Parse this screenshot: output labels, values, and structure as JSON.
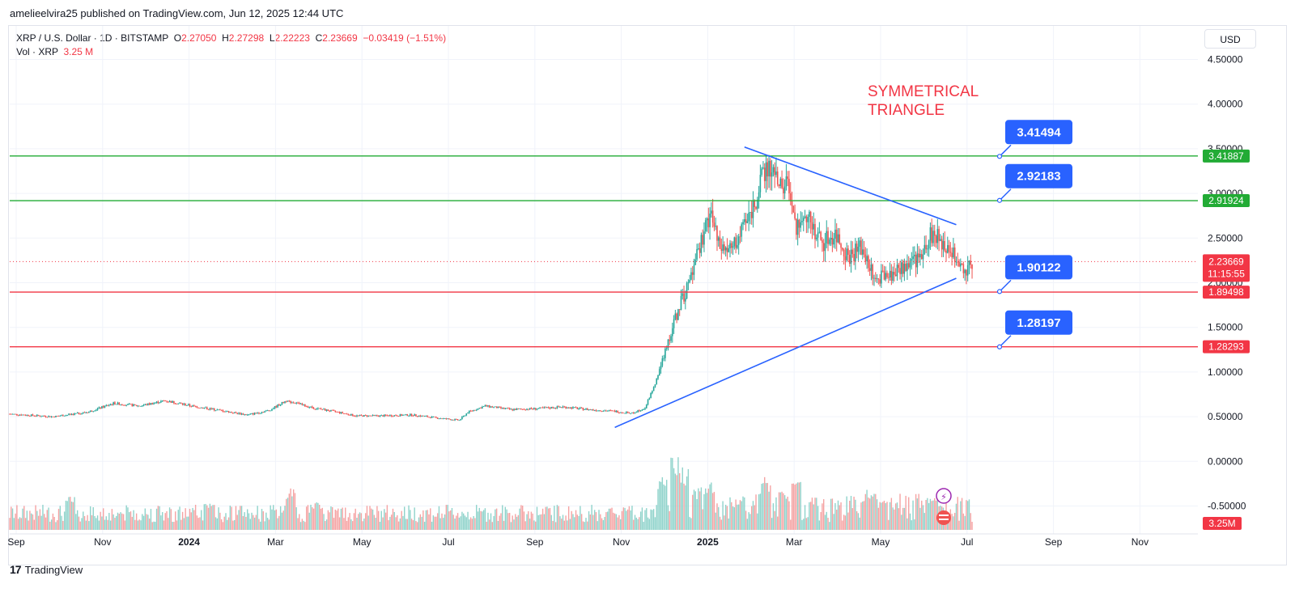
{
  "header": {
    "published": "amelieelvira25 published on TradingView.com, Jun 12, 2025 12:44 UTC"
  },
  "legend": {
    "symbol": "XRP / U.S. Dollar · 1D · BITSTAMP",
    "o_label": "O",
    "o_value": "2.27050",
    "h_label": "H",
    "h_value": "2.27298",
    "l_label": "L",
    "l_value": "2.22223",
    "c_label": "C",
    "c_value": "2.23669",
    "change": "−0.03419 (−1.51%)",
    "vol_label": "Vol · XRP",
    "vol_value": "3.25 M"
  },
  "currency_button": "USD",
  "annotation": [
    "SYMMETRICAL",
    "TRIANGLE"
  ],
  "colors": {
    "up": "#26a69a",
    "down": "#ef5350",
    "support": "#f23645",
    "resistance": "#22ab35",
    "trendline": "#2962ff",
    "callout": "#2962ff"
  },
  "chart_data": {
    "type": "candlestick",
    "title": "XRP / U.S. Dollar · 1D · BITSTAMP",
    "ylim": [
      -0.75,
      4.75
    ],
    "y_ticks": [
      "4.50000",
      "4.00000",
      "3.50000",
      "3.00000",
      "2.50000",
      "2.00000",
      "1.50000",
      "1.00000",
      "0.50000",
      "0.00000",
      "-0.50000"
    ],
    "x_months": [
      {
        "label": "Sep",
        "t": 0.15,
        "bold": false
      },
      {
        "label": "Nov",
        "t": 2.15,
        "bold": false
      },
      {
        "label": "2024",
        "t": 4.15,
        "bold": true
      },
      {
        "label": "Mar",
        "t": 6.15,
        "bold": false
      },
      {
        "label": "May",
        "t": 8.15,
        "bold": false
      },
      {
        "label": "Jul",
        "t": 10.15,
        "bold": false
      },
      {
        "label": "Sep",
        "t": 12.15,
        "bold": false
      },
      {
        "label": "Nov",
        "t": 14.15,
        "bold": false
      },
      {
        "label": "2025",
        "t": 16.15,
        "bold": true
      },
      {
        "label": "Mar",
        "t": 18.15,
        "bold": false
      },
      {
        "label": "May",
        "t": 20.15,
        "bold": false
      },
      {
        "label": "Jul",
        "t": 22.15,
        "bold": false
      },
      {
        "label": "Sep",
        "t": 24.15,
        "bold": false
      },
      {
        "label": "Nov",
        "t": 26.15,
        "bold": false
      }
    ],
    "price_path": [
      [
        0,
        0.53
      ],
      [
        1,
        0.5
      ],
      [
        1.8,
        0.55
      ],
      [
        2.4,
        0.65
      ],
      [
        3,
        0.62
      ],
      [
        3.6,
        0.68
      ],
      [
        4.2,
        0.62
      ],
      [
        5,
        0.56
      ],
      [
        5.5,
        0.52
      ],
      [
        6,
        0.57
      ],
      [
        6.4,
        0.68
      ],
      [
        7,
        0.6
      ],
      [
        7.6,
        0.55
      ],
      [
        8,
        0.51
      ],
      [
        8.6,
        0.51
      ],
      [
        9.3,
        0.52
      ],
      [
        10,
        0.48
      ],
      [
        10.4,
        0.46
      ],
      [
        10.6,
        0.55
      ],
      [
        11,
        0.62
      ],
      [
        11.6,
        0.58
      ],
      [
        12.2,
        0.59
      ],
      [
        12.8,
        0.61
      ],
      [
        13.4,
        0.58
      ],
      [
        14,
        0.56
      ],
      [
        14.4,
        0.54
      ],
      [
        14.7,
        0.6
      ],
      [
        15,
        0.95
      ],
      [
        15.2,
        1.3
      ],
      [
        15.5,
        1.75
      ],
      [
        15.8,
        2.1
      ],
      [
        16.0,
        2.45
      ],
      [
        16.2,
        2.8
      ],
      [
        16.4,
        2.4
      ],
      [
        16.7,
        2.35
      ],
      [
        17.0,
        2.6
      ],
      [
        17.3,
        3.0
      ],
      [
        17.5,
        3.3
      ],
      [
        17.8,
        3.15
      ],
      [
        18.0,
        3.05
      ],
      [
        18.2,
        2.6
      ],
      [
        18.5,
        2.7
      ],
      [
        18.8,
        2.45
      ],
      [
        19.1,
        2.55
      ],
      [
        19.4,
        2.3
      ],
      [
        19.7,
        2.4
      ],
      [
        20.0,
        2.1
      ],
      [
        20.3,
        2.05
      ],
      [
        20.6,
        2.15
      ],
      [
        21.0,
        2.25
      ],
      [
        21.3,
        2.55
      ],
      [
        21.6,
        2.45
      ],
      [
        21.9,
        2.25
      ],
      [
        22.1,
        2.15
      ],
      [
        22.3,
        2.24
      ]
    ],
    "volume_spikes": [
      [
        1.4,
        0.35
      ],
      [
        4.6,
        0.3
      ],
      [
        6.5,
        0.45
      ],
      [
        7.1,
        0.3
      ],
      [
        14.3,
        0.25
      ],
      [
        15.1,
        0.55
      ],
      [
        15.4,
        0.75
      ],
      [
        15.6,
        0.65
      ],
      [
        15.9,
        0.45
      ],
      [
        16.2,
        0.5
      ],
      [
        16.9,
        0.35
      ],
      [
        17.5,
        0.55
      ],
      [
        17.9,
        0.4
      ],
      [
        18.2,
        0.55
      ],
      [
        18.6,
        0.35
      ],
      [
        19.9,
        0.45
      ],
      [
        20.2,
        0.3
      ],
      [
        21.3,
        0.35
      ],
      [
        21.5,
        0.25
      ]
    ],
    "horizontal_levels": [
      {
        "value": 3.41887,
        "label": "3.41887",
        "kind": "resistance"
      },
      {
        "value": 2.91924,
        "label": "2.91924",
        "kind": "resistance"
      },
      {
        "value": 1.89498,
        "label": "1.89498",
        "kind": "support"
      },
      {
        "value": 1.28293,
        "label": "1.28293",
        "kind": "support"
      }
    ],
    "callouts": [
      {
        "value": 3.41494,
        "label": "3.41494"
      },
      {
        "value": 2.92183,
        "label": "2.92183"
      },
      {
        "value": 1.90122,
        "label": "1.90122"
      },
      {
        "value": 1.28197,
        "label": "1.28197"
      }
    ],
    "trendlines": [
      {
        "name": "upper",
        "from": [
          17.0,
          3.52
        ],
        "to": [
          21.9,
          2.65
        ]
      },
      {
        "name": "lower",
        "from": [
          14.0,
          0.38
        ],
        "to": [
          21.9,
          2.05
        ]
      }
    ],
    "current_price": {
      "label": "2.23669",
      "countdown": "11:15:55",
      "value": 2.23669
    },
    "current_volume": {
      "label": "3.25M"
    }
  },
  "footer": {
    "brand": "TradingView"
  }
}
